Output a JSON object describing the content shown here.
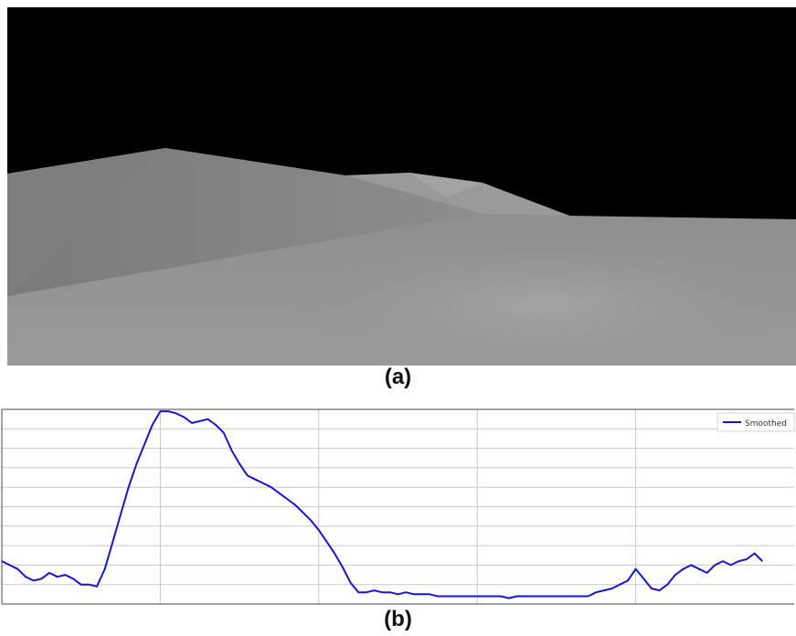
{
  "panel_a": {
    "caption": "(a)"
  },
  "panel_b": {
    "caption": "(b)"
  },
  "chart_data": {
    "type": "line",
    "title": "",
    "xlabel": "",
    "ylabel": "",
    "grid": true,
    "legend_position": "top-right",
    "xlim": [
      0,
      100
    ],
    "ylim": [
      0,
      100
    ],
    "x_gridlines": [
      20,
      40,
      60,
      80
    ],
    "y_gridlines": [
      10,
      20,
      30,
      40,
      50,
      60,
      70,
      80,
      90
    ],
    "series": [
      {
        "name": "Smoothed",
        "color": "#1515d6",
        "x": [
          0,
          1,
          2,
          3,
          4,
          5,
          6,
          7,
          8,
          9,
          10,
          11,
          12,
          13,
          14,
          15,
          16,
          17,
          18,
          19,
          20,
          21,
          22,
          23,
          24,
          25,
          26,
          27,
          28,
          29,
          30,
          31,
          32,
          33,
          34,
          35,
          36,
          37,
          38,
          39,
          40,
          41,
          42,
          43,
          44,
          45,
          46,
          47,
          48,
          49,
          50,
          51,
          52,
          53,
          54,
          55,
          56,
          57,
          58,
          59,
          60,
          61,
          62,
          63,
          64,
          65,
          66,
          67,
          68,
          69,
          70,
          71,
          72,
          73,
          74,
          75,
          76,
          77,
          78,
          79,
          80,
          81,
          82,
          83,
          84,
          85,
          86,
          87,
          88,
          89,
          90,
          91,
          92,
          93,
          94,
          95,
          96
        ],
        "y": [
          22,
          20,
          18,
          14,
          12,
          13,
          16,
          14,
          15,
          13,
          10,
          10,
          9,
          18,
          32,
          46,
          60,
          72,
          82,
          92,
          99,
          99,
          98,
          96,
          93,
          94,
          95,
          92,
          88,
          79,
          72,
          66,
          64,
          62,
          60,
          57,
          54,
          51,
          47,
          43,
          38,
          32,
          26,
          19,
          11,
          6,
          6,
          7,
          6,
          6,
          5,
          6,
          5,
          5,
          5,
          4,
          4,
          4,
          4,
          4,
          4,
          4,
          4,
          4,
          3,
          4,
          4,
          4,
          4,
          4,
          4,
          4,
          4,
          4,
          4,
          6,
          7,
          8,
          10,
          12,
          18,
          13,
          8,
          7,
          10,
          15,
          18,
          20,
          18,
          16,
          20,
          22,
          20,
          22,
          23,
          26,
          22
        ]
      }
    ]
  }
}
